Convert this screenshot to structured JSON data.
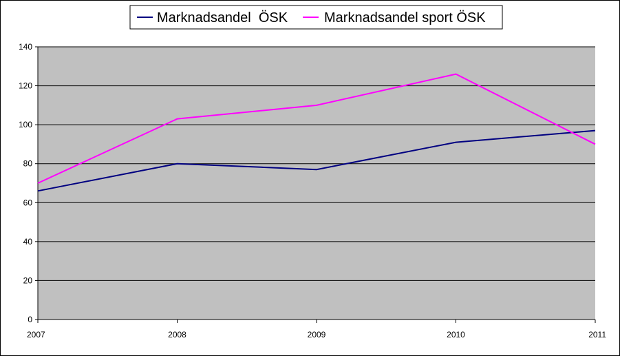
{
  "chart_data": {
    "type": "line",
    "x": [
      "2007",
      "2008",
      "2009",
      "2010",
      "2011"
    ],
    "series": [
      {
        "name": "Marknadsandel  ÖSK",
        "color": "#000080",
        "values": [
          66,
          80,
          77,
          91,
          97
        ]
      },
      {
        "name": "Marknadsandel sport ÖSK",
        "color": "#FF00FF",
        "values": [
          70,
          103,
          110,
          126,
          90
        ]
      }
    ],
    "ylim": [
      0,
      140
    ],
    "yticks": [
      "0",
      "20",
      "40",
      "60",
      "80",
      "100",
      "120",
      "140"
    ],
    "grid": true,
    "plot_background": "#C0C0C0",
    "legend_position": "top-center"
  }
}
